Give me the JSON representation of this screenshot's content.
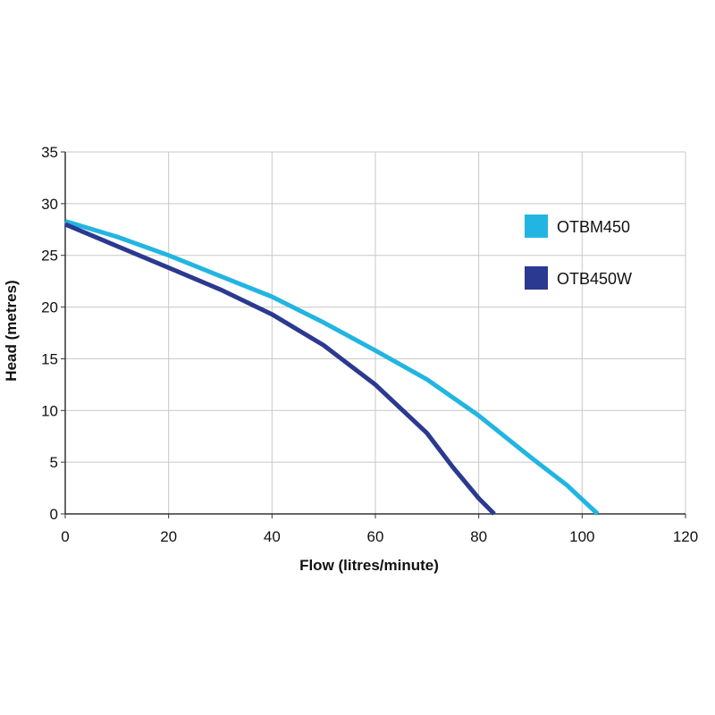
{
  "chart_data": {
    "type": "line",
    "title": "",
    "xlabel": "Flow (litres/minute)",
    "ylabel": "Head (metres)",
    "xlim": [
      0,
      120
    ],
    "ylim": [
      0,
      35
    ],
    "xticks": [
      0,
      20,
      40,
      60,
      80,
      100,
      120
    ],
    "yticks": [
      0,
      5,
      10,
      15,
      20,
      25,
      30,
      35
    ],
    "xtick_labels": [
      "0",
      "20",
      "40",
      "60",
      "80",
      "100",
      "120"
    ],
    "ytick_labels": [
      "0",
      "5",
      "10",
      "15",
      "20",
      "25",
      "30",
      "35"
    ],
    "grid": true,
    "legend_position": "right",
    "series": [
      {
        "name": "OTBM450",
        "color": "#22b5e2",
        "x": [
          0,
          10,
          20,
          30,
          40,
          50,
          60,
          70,
          80,
          90,
          97,
          103
        ],
        "y": [
          28.3,
          26.8,
          25.0,
          23.0,
          21.0,
          18.5,
          15.8,
          13.0,
          9.5,
          5.5,
          2.8,
          0
        ]
      },
      {
        "name": "OTB450W",
        "color": "#2b3990",
        "x": [
          0,
          10,
          20,
          30,
          40,
          50,
          60,
          70,
          75,
          80,
          83
        ],
        "y": [
          28.0,
          25.9,
          23.8,
          21.7,
          19.3,
          16.3,
          12.5,
          7.8,
          4.5,
          1.5,
          0
        ]
      }
    ]
  }
}
